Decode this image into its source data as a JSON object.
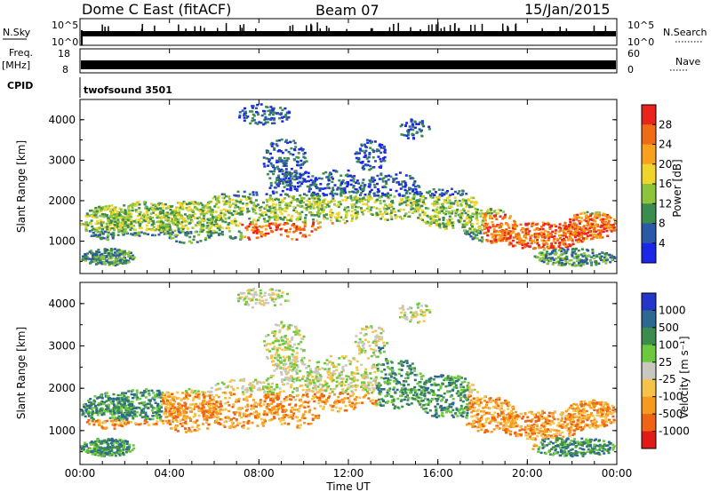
{
  "header": {
    "title": "Dome C East (fitACF)",
    "beam": "Beam 07",
    "date": "15/Jan/2015"
  },
  "top_panels": {
    "nsky_label": "N.Sky",
    "nsearch_label": "N.Search",
    "nsky_tick_hi": "10^5",
    "nsky_tick_lo": "10^0",
    "freq_label": "Freq.",
    "freq_unit": "[MHz]",
    "freq_ticks": [
      "18",
      "8"
    ],
    "nave_label": "Nave",
    "nave_ticks": [
      "60",
      "0"
    ],
    "cpid_label": "CPID",
    "cpid_value": "twofsound 3501"
  },
  "chart_data": [
    {
      "type": "heatmap",
      "panel": "power",
      "ylabel": "Slant Range [km]",
      "y_ticks": [
        1000,
        2000,
        3000,
        4000
      ],
      "ylim": [
        200,
        4500
      ],
      "colorbar": {
        "label": "Power [dB]",
        "ticks": [
          "28",
          "24",
          "20",
          "16",
          "12",
          "8",
          "4"
        ],
        "colors": [
          "#e8241c",
          "#f06c14",
          "#f7a21a",
          "#efd42a",
          "#8cc43c",
          "#3c8c50",
          "#2c58a8",
          "#1a26e8"
        ]
      }
    },
    {
      "type": "heatmap",
      "panel": "velocity",
      "ylabel": "Slant Range [km]",
      "y_ticks": [
        1000,
        2000,
        3000,
        4000
      ],
      "ylim": [
        200,
        4500
      ],
      "xlabel": "Time UT",
      "x_ticks": [
        "00:00",
        "04:00",
        "08:00",
        "12:00",
        "16:00",
        "20:00",
        "00:00"
      ],
      "colorbar": {
        "label": "Velocity [m s⁻¹]",
        "ticks": [
          "1000",
          "500",
          "100",
          "25",
          "-25",
          "-100",
          "-500",
          "-1000"
        ],
        "colors": [
          "#2436c8",
          "#2c6890",
          "#3c8c50",
          "#6cc83c",
          "#c8c8c0",
          "#f7c24a",
          "#f59a1c",
          "#ee6414",
          "#e01a16"
        ]
      }
    }
  ],
  "colors": {
    "power_scale": [
      "#1a26e8",
      "#2c58a8",
      "#3c8c50",
      "#8cc43c",
      "#efd42a",
      "#f7a21a",
      "#f06c14",
      "#e8241c"
    ],
    "velocity_scale": [
      "#e01a16",
      "#ee6414",
      "#f59a1c",
      "#f7c24a",
      "#c8c8c0",
      "#6cc83c",
      "#3c8c50",
      "#2c6890",
      "#2436c8"
    ]
  }
}
